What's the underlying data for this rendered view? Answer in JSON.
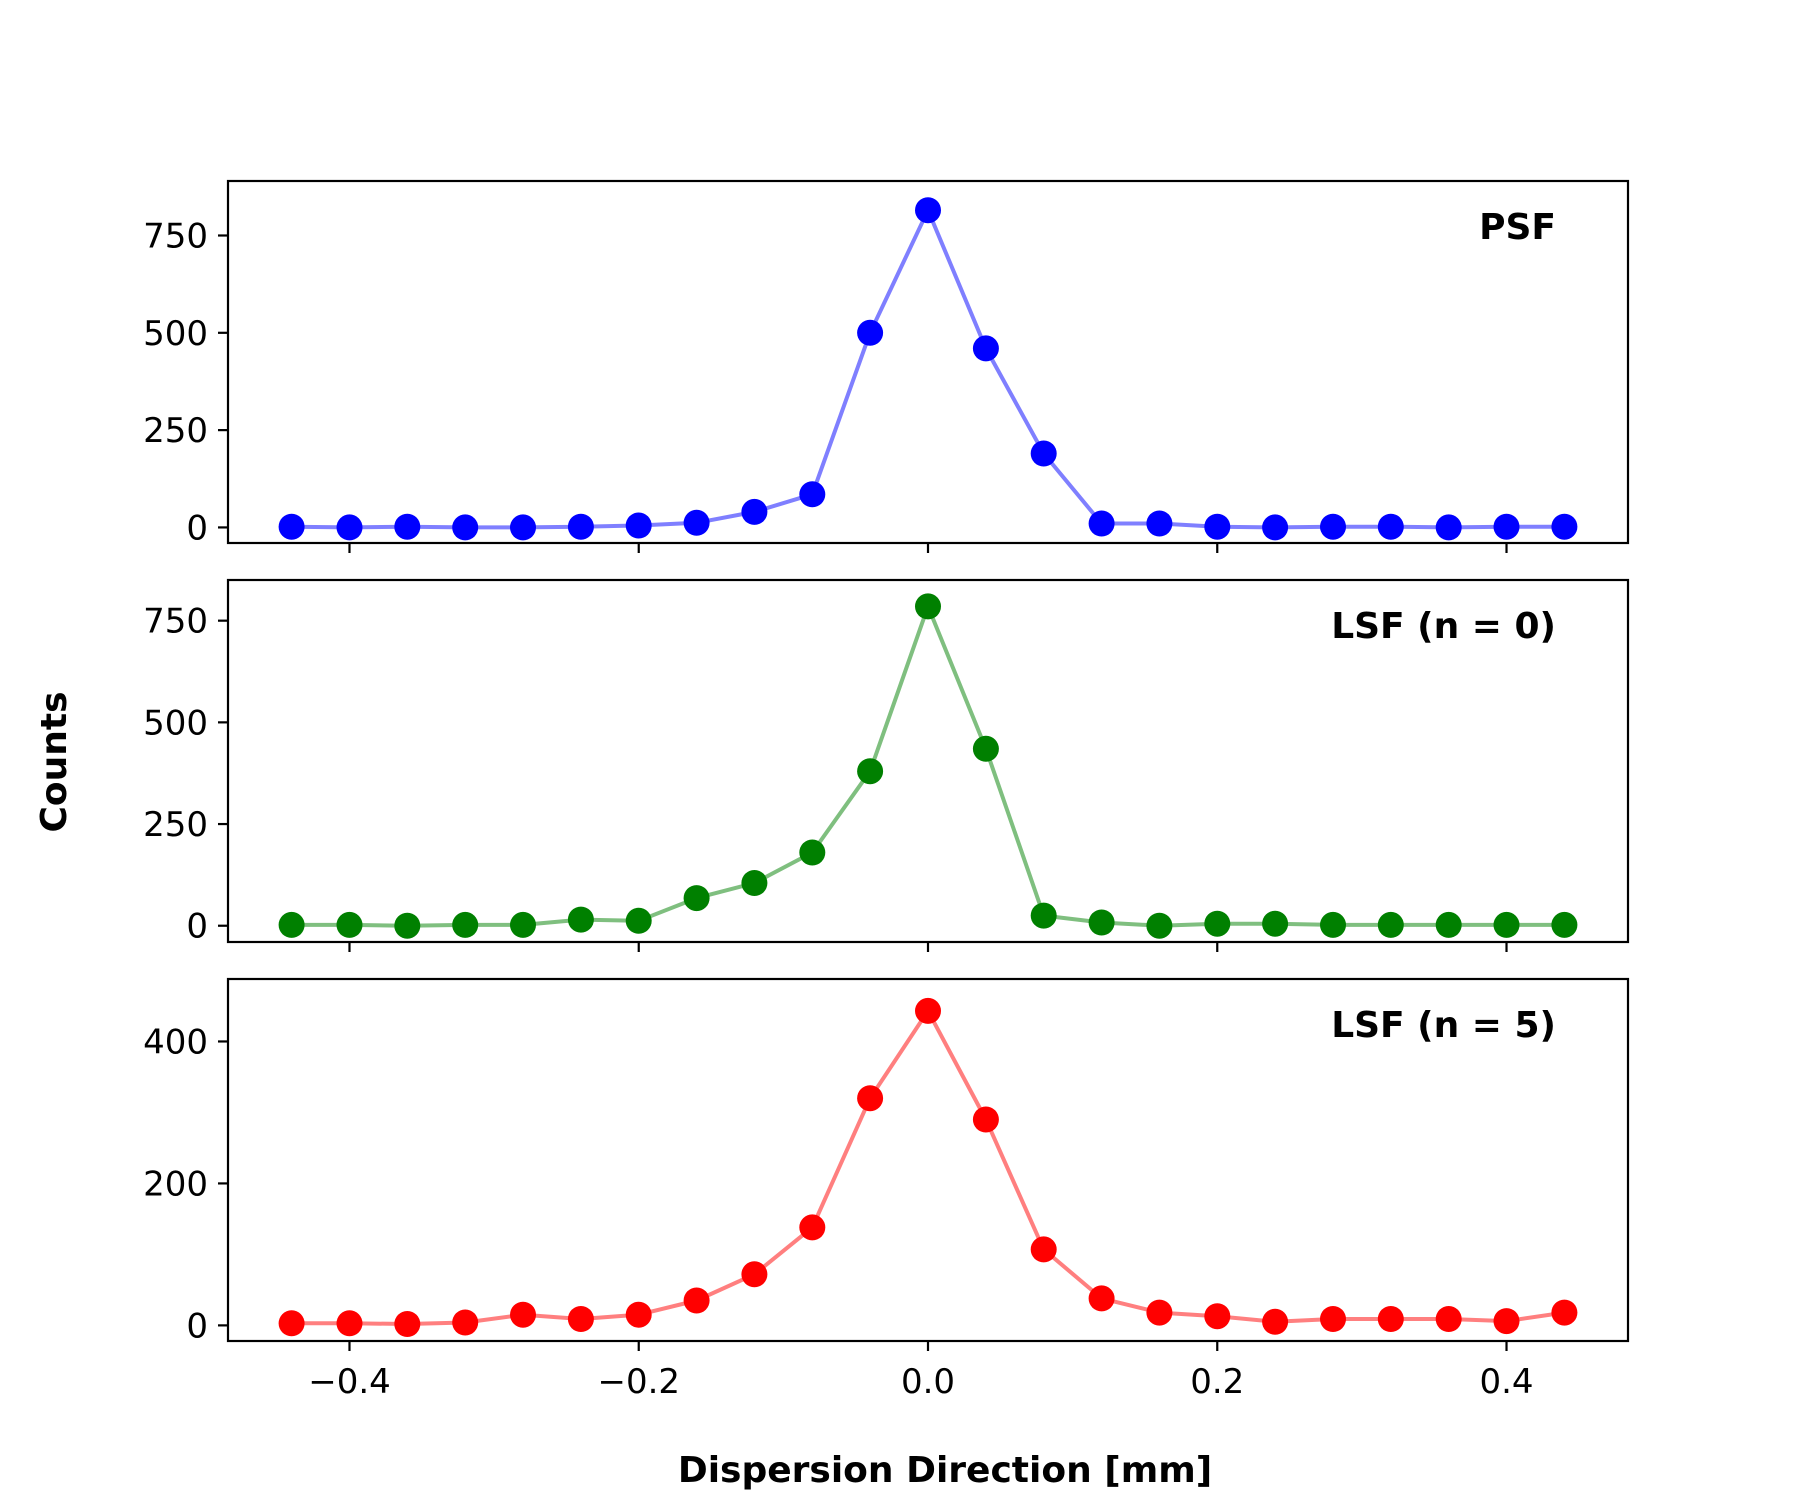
{
  "chart_data": {
    "type": "line",
    "xlabel": "Dispersion Direction [mm]",
    "ylabel": "Counts",
    "xlim": [
      -0.484,
      0.484
    ],
    "x_ticks": [
      -0.4,
      -0.2,
      0.0,
      0.2,
      0.4
    ],
    "x_tick_labels": [
      "−0.4",
      "−0.2",
      "0.0",
      "0.2",
      "0.4"
    ],
    "x": [
      -0.44,
      -0.4,
      -0.36,
      -0.32,
      -0.28,
      -0.24,
      -0.2,
      -0.16,
      -0.12,
      -0.08,
      -0.04,
      0.0,
      0.04,
      0.08,
      0.12,
      0.16,
      0.2,
      0.24,
      0.28,
      0.32,
      0.36,
      0.4,
      0.44
    ],
    "panels": [
      {
        "label": "PSF",
        "color": "#0000ff",
        "ylim": [
          -40,
          890
        ],
        "y_ticks": [
          0,
          250,
          500,
          750
        ],
        "y_tick_labels": [
          "0",
          "250",
          "500",
          "750"
        ],
        "values": [
          2,
          0,
          2,
          0,
          0,
          2,
          5,
          12,
          40,
          85,
          500,
          815,
          460,
          190,
          10,
          10,
          2,
          0,
          2,
          2,
          0,
          2,
          2
        ]
      },
      {
        "label": "LSF (n = 0)",
        "color": "#008000",
        "ylim": [
          -40,
          850
        ],
        "y_ticks": [
          0,
          250,
          500,
          750
        ],
        "y_tick_labels": [
          "0",
          "250",
          "500",
          "750"
        ],
        "values": [
          2,
          2,
          0,
          2,
          2,
          15,
          12,
          68,
          105,
          180,
          380,
          785,
          435,
          25,
          8,
          0,
          5,
          5,
          2,
          2,
          2,
          2,
          2
        ]
      },
      {
        "label": "LSF (n = 5)",
        "color": "#ff0000",
        "ylim": [
          -22,
          488
        ],
        "y_ticks": [
          0,
          200,
          400
        ],
        "y_tick_labels": [
          "0",
          "200",
          "400"
        ],
        "values": [
          3,
          3,
          2,
          4,
          15,
          9,
          15,
          35,
          72,
          138,
          320,
          443,
          290,
          107,
          38,
          18,
          13,
          5,
          9,
          9,
          9,
          6,
          18
        ]
      }
    ]
  }
}
